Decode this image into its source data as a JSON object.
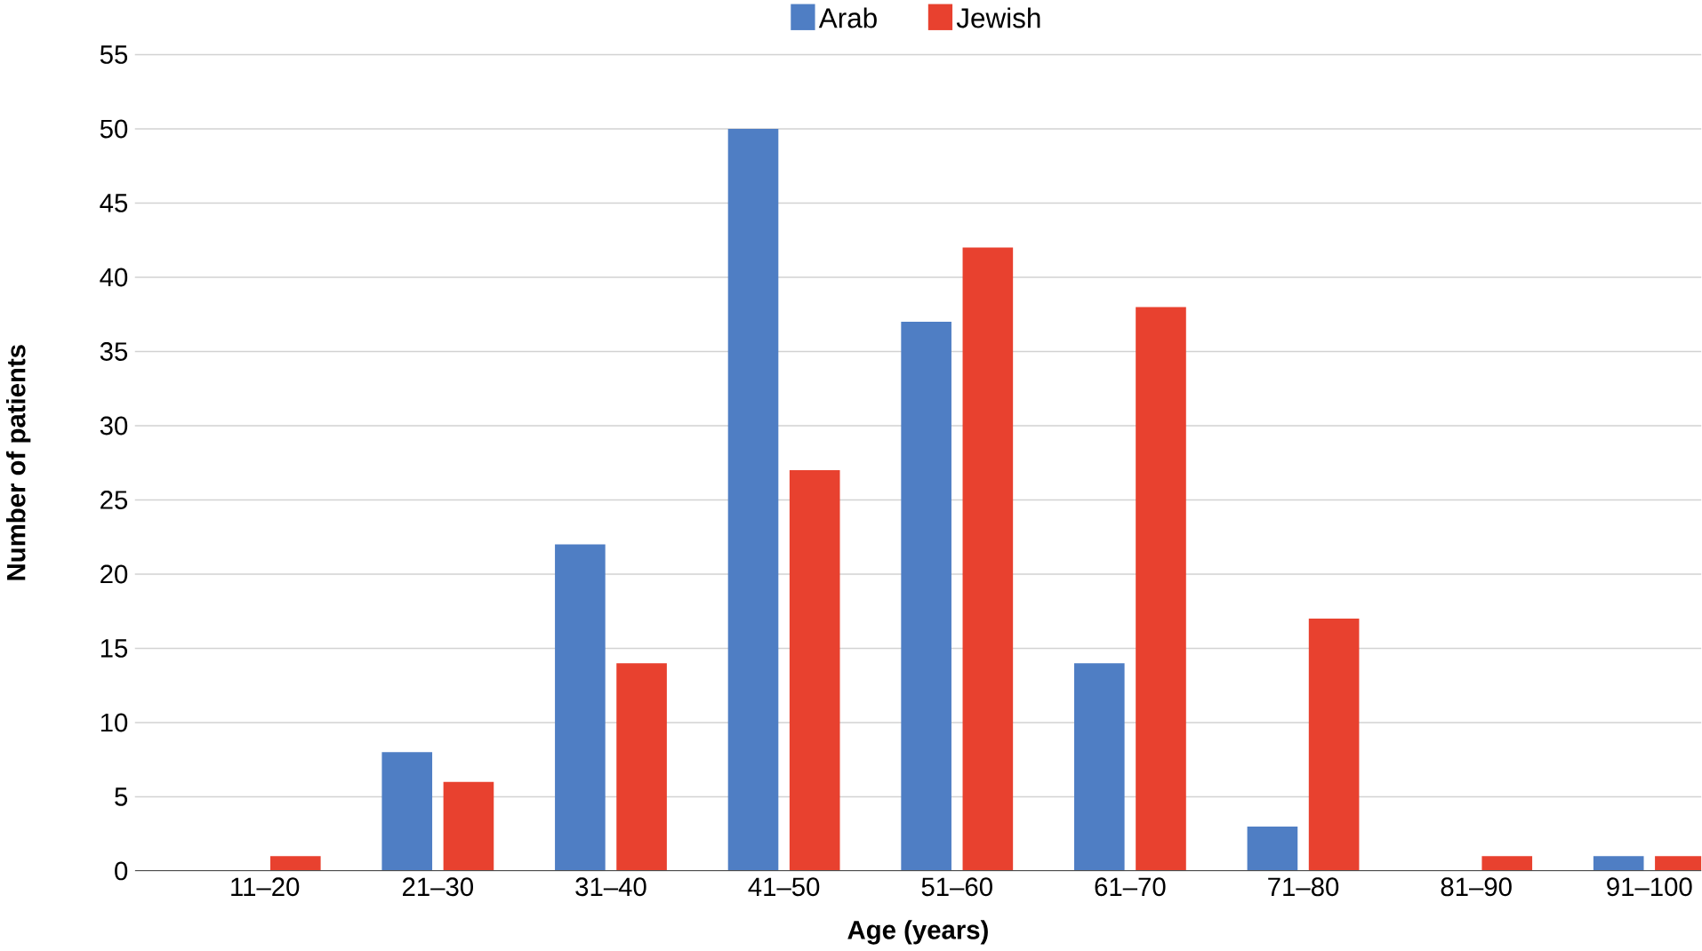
{
  "chart_data": {
    "type": "bar",
    "xlabel": "Age (years)",
    "ylabel": "Number of patients",
    "categories": [
      "11–20",
      "21–30",
      "31–40",
      "41–50",
      "51–60",
      "61–70",
      "71–80",
      "81–90",
      "91–100"
    ],
    "series": [
      {
        "name": "Arab",
        "color": "#4f7ec4",
        "values": [
          0,
          8,
          22,
          50,
          37,
          14,
          3,
          0,
          1
        ]
      },
      {
        "name": "Jewish",
        "color": "#e8412f",
        "values": [
          1,
          6,
          14,
          27,
          42,
          38,
          17,
          1,
          1
        ]
      }
    ],
    "ylim": [
      0,
      55
    ],
    "yticks": [
      0,
      5,
      10,
      15,
      20,
      25,
      30,
      35,
      40,
      45,
      50,
      55
    ],
    "grid": "y",
    "legend": "top"
  }
}
